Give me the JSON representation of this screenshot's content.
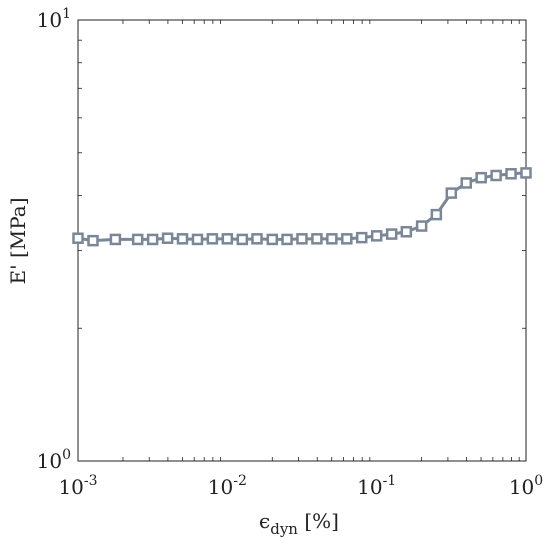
{
  "chart_data": {
    "type": "line",
    "title": "",
    "xlabel": "ϵ",
    "xlabel_subscript": "dyn",
    "xlabel_unit": " [%]",
    "ylabel": "E' [MPa]",
    "xscale": "log",
    "yscale": "log",
    "xlim": [
      0.001,
      1
    ],
    "ylim": [
      1,
      10
    ],
    "grid": false,
    "legend": "none",
    "marker": "square",
    "x_ticks": [
      {
        "value": 0.001,
        "base": "10",
        "exp": "-3"
      },
      {
        "value": 0.01,
        "base": "10",
        "exp": "-2"
      },
      {
        "value": 0.1,
        "base": "10",
        "exp": "-1"
      },
      {
        "value": 1,
        "base": "10",
        "exp": "0"
      }
    ],
    "y_ticks": [
      {
        "value": 1,
        "base": "10",
        "exp": "0"
      },
      {
        "value": 10,
        "base": "10",
        "exp": "1"
      }
    ],
    "series": [
      {
        "color": "#7a8796",
        "x": [
          0.001,
          0.00126,
          0.00178,
          0.00251,
          0.00316,
          0.00398,
          0.00501,
          0.00631,
          0.00794,
          0.01,
          0.0126,
          0.0158,
          0.02,
          0.0251,
          0.0316,
          0.0398,
          0.0501,
          0.0631,
          0.0794,
          0.1,
          0.126,
          0.158,
          0.2,
          0.251,
          0.316,
          0.398,
          0.501,
          0.631,
          0.794,
          1.0
        ],
        "y": [
          3.2,
          3.16,
          3.18,
          3.18,
          3.18,
          3.2,
          3.19,
          3.18,
          3.19,
          3.19,
          3.18,
          3.19,
          3.18,
          3.18,
          3.19,
          3.19,
          3.19,
          3.19,
          3.21,
          3.24,
          3.27,
          3.31,
          3.41,
          3.62,
          4.05,
          4.27,
          4.39,
          4.44,
          4.48,
          4.5
        ]
      }
    ]
  }
}
